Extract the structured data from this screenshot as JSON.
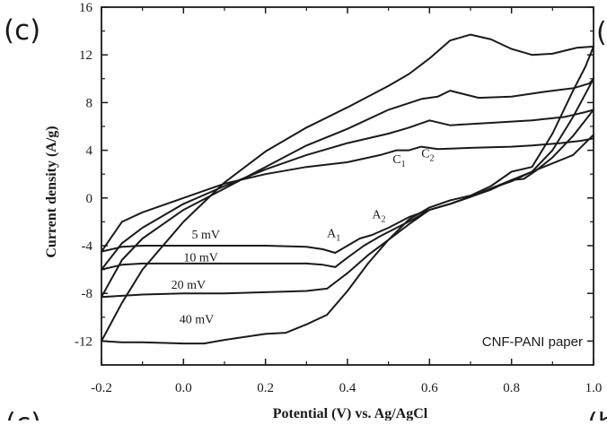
{
  "figure": {
    "panel_label": "(c)",
    "corner_fragments": {
      "top_right": "(",
      "bottom_left": "(c)",
      "bottom_right": "(b"
    }
  },
  "chart_data": {
    "type": "line",
    "title": "",
    "xlabel": "Potential (V) vs. Ag/AgCl",
    "ylabel": "Current density (A/g)",
    "xlim": [
      -0.2,
      1.0
    ],
    "ylim": [
      -14,
      16
    ],
    "x_ticks": [
      -0.2,
      0.0,
      0.2,
      0.4,
      0.6,
      0.8,
      1.0
    ],
    "x_tick_labels": [
      "-0.2",
      "0.0",
      "0.2",
      "0.4",
      "0.6",
      "0.8",
      "1.0"
    ],
    "y_ticks": [
      -12,
      -8,
      -4,
      0,
      4,
      8,
      12,
      16
    ],
    "y_tick_labels": [
      "-12",
      "-8",
      "-4",
      "0",
      "4",
      "8",
      "12",
      "16"
    ],
    "grid": false,
    "legend": "none",
    "inset_label": "CNF-PANI paper",
    "annotations": [
      {
        "text": "A",
        "sub": "1",
        "x": 0.35,
        "y": -3.3
      },
      {
        "text": "A",
        "sub": "2",
        "x": 0.46,
        "y": -1.7
      },
      {
        "text": "C",
        "sub": "1",
        "x": 0.51,
        "y": 2.9
      },
      {
        "text": "C",
        "sub": "2",
        "x": 0.58,
        "y": 3.4
      }
    ],
    "series": [
      {
        "name": "5 mV",
        "label_pos": {
          "x": 0.02,
          "y": -3.4
        },
        "points": [
          [
            -0.2,
            -4.5
          ],
          [
            -0.15,
            -4.1
          ],
          [
            -0.1,
            -4.0
          ],
          [
            0.0,
            -4.0
          ],
          [
            0.1,
            -4.0
          ],
          [
            0.2,
            -4.0
          ],
          [
            0.3,
            -4.1
          ],
          [
            0.34,
            -4.3
          ],
          [
            0.37,
            -4.6
          ],
          [
            0.4,
            -4.0
          ],
          [
            0.43,
            -3.4
          ],
          [
            0.46,
            -3.1
          ],
          [
            0.5,
            -2.5
          ],
          [
            0.55,
            -1.6
          ],
          [
            0.6,
            -1.0
          ],
          [
            0.65,
            -0.5
          ],
          [
            0.7,
            0.1
          ],
          [
            0.75,
            0.7
          ],
          [
            0.8,
            1.5
          ],
          [
            0.85,
            2.2
          ],
          [
            0.9,
            2.9
          ],
          [
            0.95,
            3.6
          ],
          [
            1.0,
            5.3
          ],
          [
            1.0,
            5.0
          ],
          [
            0.97,
            4.8
          ],
          [
            0.92,
            4.6
          ],
          [
            0.85,
            4.4
          ],
          [
            0.8,
            4.3
          ],
          [
            0.7,
            4.2
          ],
          [
            0.62,
            4.1
          ],
          [
            0.58,
            4.3
          ],
          [
            0.55,
            4.0
          ],
          [
            0.52,
            4.0
          ],
          [
            0.48,
            3.6
          ],
          [
            0.4,
            3.0
          ],
          [
            0.3,
            2.6
          ],
          [
            0.2,
            2.0
          ],
          [
            0.1,
            1.2
          ],
          [
            0.0,
            0.0
          ],
          [
            -0.1,
            -1.2
          ],
          [
            -0.15,
            -2.0
          ],
          [
            -0.2,
            -4.5
          ]
        ]
      },
      {
        "name": "10 mV",
        "label_pos": {
          "x": 0.0,
          "y": -5.3
        },
        "points": [
          [
            -0.2,
            -6.0
          ],
          [
            -0.15,
            -5.6
          ],
          [
            -0.1,
            -5.5
          ],
          [
            0.0,
            -5.5
          ],
          [
            0.1,
            -5.5
          ],
          [
            0.2,
            -5.5
          ],
          [
            0.3,
            -5.5
          ],
          [
            0.34,
            -5.6
          ],
          [
            0.37,
            -5.8
          ],
          [
            0.4,
            -5.0
          ],
          [
            0.44,
            -4.0
          ],
          [
            0.48,
            -3.2
          ],
          [
            0.52,
            -2.5
          ],
          [
            0.56,
            -1.8
          ],
          [
            0.6,
            -1.0
          ],
          [
            0.65,
            -0.5
          ],
          [
            0.7,
            0.1
          ],
          [
            0.75,
            0.8
          ],
          [
            0.8,
            1.5
          ],
          [
            0.83,
            1.6
          ],
          [
            0.86,
            2.3
          ],
          [
            0.9,
            3.4
          ],
          [
            0.95,
            5.2
          ],
          [
            1.0,
            7.4
          ],
          [
            0.98,
            7.2
          ],
          [
            0.93,
            6.8
          ],
          [
            0.85,
            6.5
          ],
          [
            0.75,
            6.3
          ],
          [
            0.65,
            6.1
          ],
          [
            0.6,
            6.5
          ],
          [
            0.55,
            5.9
          ],
          [
            0.5,
            5.4
          ],
          [
            0.4,
            4.6
          ],
          [
            0.3,
            3.6
          ],
          [
            0.2,
            2.4
          ],
          [
            0.1,
            1.0
          ],
          [
            0.0,
            -0.5
          ],
          [
            -0.1,
            -2.5
          ],
          [
            -0.15,
            -3.8
          ],
          [
            -0.2,
            -6.0
          ]
        ]
      },
      {
        "name": "20 mV",
        "label_pos": {
          "x": -0.03,
          "y": -7.6
        },
        "points": [
          [
            -0.2,
            -8.3
          ],
          [
            -0.15,
            -8.2
          ],
          [
            -0.1,
            -8.1
          ],
          [
            0.0,
            -8.0
          ],
          [
            0.1,
            -8.0
          ],
          [
            0.2,
            -7.9
          ],
          [
            0.3,
            -7.8
          ],
          [
            0.35,
            -7.6
          ],
          [
            0.4,
            -6.3
          ],
          [
            0.45,
            -4.8
          ],
          [
            0.5,
            -3.5
          ],
          [
            0.55,
            -2.2
          ],
          [
            0.6,
            -1.0
          ],
          [
            0.65,
            -0.5
          ],
          [
            0.7,
            0.1
          ],
          [
            0.75,
            0.8
          ],
          [
            0.8,
            1.4
          ],
          [
            0.85,
            2.2
          ],
          [
            0.9,
            4.0
          ],
          [
            0.95,
            6.8
          ],
          [
            1.0,
            10.0
          ],
          [
            0.99,
            9.6
          ],
          [
            0.95,
            9.2
          ],
          [
            0.88,
            8.9
          ],
          [
            0.8,
            8.5
          ],
          [
            0.72,
            8.4
          ],
          [
            0.65,
            9.0
          ],
          [
            0.62,
            8.5
          ],
          [
            0.58,
            8.3
          ],
          [
            0.5,
            7.4
          ],
          [
            0.4,
            5.8
          ],
          [
            0.3,
            4.4
          ],
          [
            0.2,
            2.6
          ],
          [
            0.1,
            0.8
          ],
          [
            0.0,
            -1.0
          ],
          [
            -0.1,
            -3.4
          ],
          [
            -0.15,
            -5.2
          ],
          [
            -0.2,
            -8.3
          ]
        ]
      },
      {
        "name": "40 mV",
        "label_pos": {
          "x": -0.01,
          "y": -10.5
        },
        "points": [
          [
            -0.2,
            -12.0
          ],
          [
            -0.15,
            -12.1
          ],
          [
            -0.1,
            -12.1
          ],
          [
            0.0,
            -12.2
          ],
          [
            0.05,
            -12.2
          ],
          [
            0.1,
            -11.9
          ],
          [
            0.2,
            -11.4
          ],
          [
            0.25,
            -11.3
          ],
          [
            0.3,
            -10.6
          ],
          [
            0.35,
            -9.8
          ],
          [
            0.4,
            -7.8
          ],
          [
            0.45,
            -5.5
          ],
          [
            0.5,
            -3.5
          ],
          [
            0.55,
            -1.8
          ],
          [
            0.6,
            -0.8
          ],
          [
            0.65,
            -0.2
          ],
          [
            0.7,
            0.2
          ],
          [
            0.75,
            1.0
          ],
          [
            0.8,
            2.2
          ],
          [
            0.85,
            2.6
          ],
          [
            0.9,
            5.4
          ],
          [
            0.95,
            9.0
          ],
          [
            0.98,
            11.0
          ],
          [
            1.0,
            12.7
          ],
          [
            0.96,
            12.6
          ],
          [
            0.9,
            12.1
          ],
          [
            0.85,
            12.0
          ],
          [
            0.8,
            12.5
          ],
          [
            0.75,
            13.3
          ],
          [
            0.7,
            13.7
          ],
          [
            0.65,
            13.2
          ],
          [
            0.6,
            11.7
          ],
          [
            0.55,
            10.4
          ],
          [
            0.5,
            9.4
          ],
          [
            0.4,
            7.6
          ],
          [
            0.3,
            5.9
          ],
          [
            0.2,
            3.9
          ],
          [
            0.1,
            1.3
          ],
          [
            0.0,
            -2.0
          ],
          [
            -0.1,
            -6.0
          ],
          [
            -0.15,
            -8.8
          ],
          [
            -0.2,
            -12.0
          ]
        ]
      }
    ]
  }
}
